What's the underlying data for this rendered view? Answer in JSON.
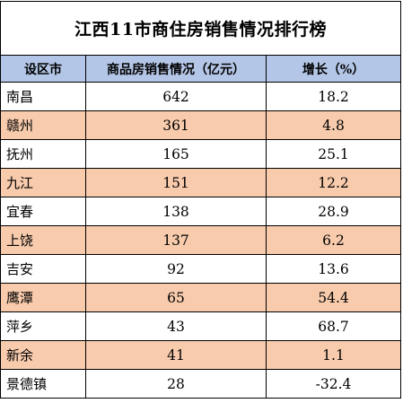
{
  "table": {
    "title": "江西11市商住房销售情况排行榜",
    "headers": [
      "设区市",
      "商品房销售情况（亿元）",
      "增长（%）"
    ],
    "rows": [
      {
        "city": "南昌",
        "sales": "642",
        "growth": "18.2"
      },
      {
        "city": "赣州",
        "sales": "361",
        "growth": "4.8"
      },
      {
        "city": "抚州",
        "sales": "165",
        "growth": "25.1"
      },
      {
        "city": "九江",
        "sales": "151",
        "growth": "12.2"
      },
      {
        "city": "宜春",
        "sales": "138",
        "growth": "28.9"
      },
      {
        "city": "上饶",
        "sales": "137",
        "growth": "6.2"
      },
      {
        "city": "吉安",
        "sales": "92",
        "growth": "13.6"
      },
      {
        "city": "鹰潭",
        "sales": "65",
        "growth": "54.4"
      },
      {
        "city": "萍乡",
        "sales": "43",
        "growth": "68.7"
      },
      {
        "city": "新余",
        "sales": "41",
        "growth": "1.1"
      },
      {
        "city": "景德镇",
        "sales": "28",
        "growth": "-32.4"
      }
    ]
  },
  "colors": {
    "header_fill": "#b4c6e7",
    "band_fill": "#f8cbad",
    "border": "#000000"
  }
}
